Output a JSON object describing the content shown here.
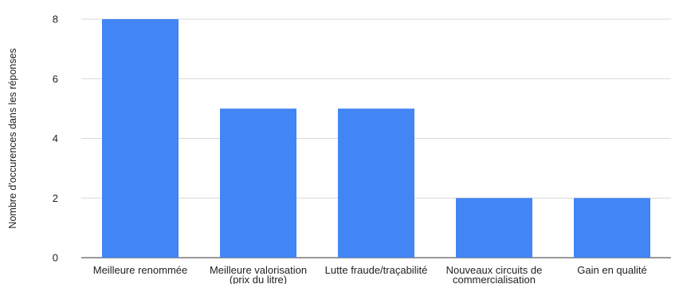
{
  "chart_data": {
    "type": "bar",
    "categories": [
      [
        "Meilleure renommée"
      ],
      [
        "Meilleure valorisation",
        "(prix du litre)"
      ],
      [
        "Lutte fraude/traçabilité"
      ],
      [
        "Nouveaux circuits de",
        "commercialisation"
      ],
      [
        "Gain en qualité"
      ]
    ],
    "values": [
      8,
      5,
      5,
      2,
      2
    ],
    "title": "",
    "xlabel": "",
    "ylabel": "Nombre d'occurences dans les réponses",
    "ylim": [
      0,
      8
    ],
    "yticks": [
      0,
      2,
      4,
      6,
      8
    ],
    "grid": true,
    "legend": "none",
    "bar_color": "#4285f4"
  }
}
